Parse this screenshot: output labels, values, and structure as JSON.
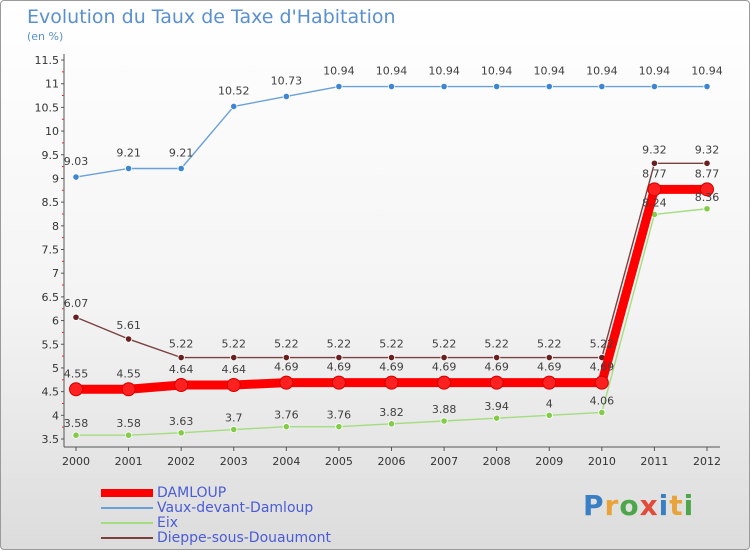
{
  "header": {
    "title": "Evolution du Taux de Taxe d'Habitation",
    "unit": "(en %)"
  },
  "logo": {
    "text": "Proxiti",
    "colors": [
      "#3a7fc4",
      "#e8a33a",
      "#4ea64a",
      "#e14b3a",
      "#3a7fc4",
      "#e8a33a",
      "#4ea64a"
    ]
  },
  "chart_data": {
    "type": "line",
    "title": "Evolution du Taux de Taxe d'Habitation",
    "ylabel": "(en %)",
    "xlabel": "",
    "x": [
      "2000",
      "2001",
      "2002",
      "2003",
      "2004",
      "2005",
      "2006",
      "2007",
      "2008",
      "2009",
      "2010",
      "2011",
      "2012"
    ],
    "ylim": [
      3.5,
      11.5
    ],
    "yticks": [
      "3.5",
      "4",
      "4.5",
      "5",
      "5.5",
      "6",
      "6.5",
      "7",
      "7.5",
      "8",
      "8.5",
      "9",
      "9.5",
      "10",
      "10.5",
      "11",
      "11.5"
    ],
    "grid": false,
    "legend_position": "bottom-left",
    "series": [
      {
        "name": "DAMLOUP",
        "color": "#ff0000",
        "values": [
          4.55,
          4.55,
          4.64,
          4.64,
          4.69,
          4.69,
          4.69,
          4.69,
          4.69,
          4.69,
          4.69,
          8.77,
          8.77
        ],
        "labels": [
          "4.55",
          "4.55",
          "4.64",
          "4.64",
          "4.69",
          "4.69",
          "4.69",
          "4.69",
          "4.69",
          "4.69",
          "4.69",
          "8.77",
          "8.77"
        ]
      },
      {
        "name": "Vaux-devant-Damloup",
        "color": "#4a8ed6",
        "values": [
          9.03,
          9.21,
          9.21,
          10.52,
          10.73,
          10.94,
          10.94,
          10.94,
          10.94,
          10.94,
          10.94,
          10.94,
          10.94
        ],
        "labels": [
          "9.03",
          "9.21",
          "9.21",
          "10.52",
          "10.73",
          "10.94",
          "10.94",
          "10.94",
          "10.94",
          "10.94",
          "10.94",
          "10.94",
          "10.94"
        ]
      },
      {
        "name": "Eix",
        "color": "#8fd466",
        "values": [
          3.58,
          3.58,
          3.63,
          3.7,
          3.76,
          3.76,
          3.82,
          3.88,
          3.94,
          4.0,
          4.06,
          8.24,
          8.36
        ],
        "labels": [
          "3.58",
          "3.58",
          "3.63",
          "3.7",
          "3.76",
          "3.76",
          "3.82",
          "3.88",
          "3.94",
          "4",
          "4.06",
          "8.24",
          "8.36"
        ]
      },
      {
        "name": "Dieppe-sous-Douaumont",
        "color": "#7a2a2a",
        "values": [
          6.07,
          5.61,
          5.22,
          5.22,
          5.22,
          5.22,
          5.22,
          5.22,
          5.22,
          5.22,
          5.22,
          9.32,
          9.32
        ],
        "labels": [
          "6.07",
          "5.61",
          "5.22",
          "5.22",
          "5.22",
          "5.22",
          "5.22",
          "5.22",
          "5.22",
          "5.22",
          "5.22",
          "9.32",
          "9.32"
        ]
      }
    ]
  }
}
